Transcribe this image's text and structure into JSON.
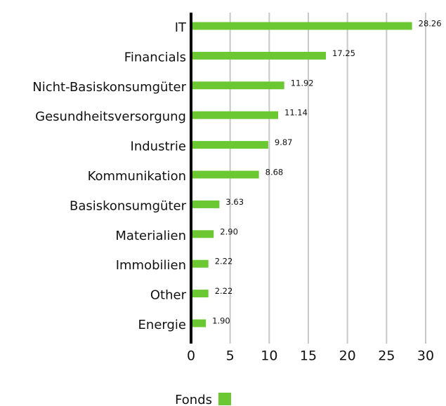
{
  "chart_data": {
    "type": "barh",
    "categories": [
      "IT",
      "Financials",
      "Nicht-Basiskonsumgüter",
      "Gesundheitsversorgung",
      "Industrie",
      "Kommunikation",
      "Basiskonsumgüter",
      "Materialien",
      "Immobilien",
      "Other",
      "Energie"
    ],
    "series": [
      {
        "name": "Fonds",
        "color": "#6cc832",
        "values": [
          28.26,
          17.25,
          11.92,
          11.14,
          9.87,
          8.68,
          3.63,
          2.9,
          2.22,
          2.22,
          1.9
        ],
        "value_labels": [
          "28.26",
          "17.25",
          "11.92",
          "11.14",
          "9.87",
          "8.68",
          "3.63",
          "2.90",
          "2.22",
          "2.22",
          "1.90"
        ]
      }
    ],
    "xlim": [
      0,
      30
    ],
    "xticks": [
      0,
      5,
      10,
      15,
      20,
      25,
      30
    ],
    "grid": true,
    "legend": "bottom"
  }
}
